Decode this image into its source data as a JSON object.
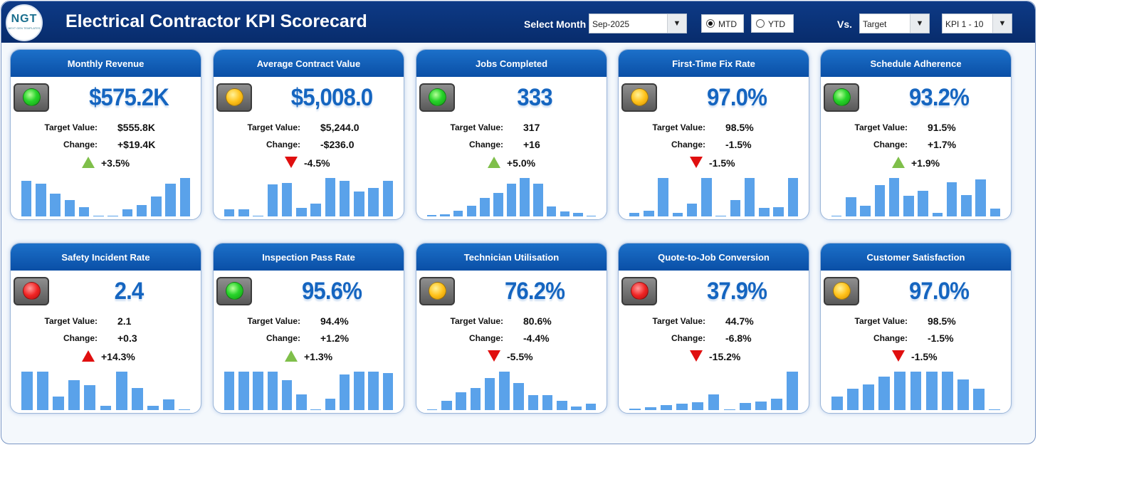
{
  "header": {
    "logo_text": "NGT",
    "logo_subtext": "NEXT GEN TEMPLATES",
    "title": "Electrical Contractor KPI Scorecard",
    "select_month_label": "Select Month",
    "month_value": "Sep-2025",
    "radio_mtd": "MTD",
    "radio_ytd": "YTD",
    "selected_mode": "MTD",
    "vs_label": "Vs.",
    "compare_value": "Target",
    "kpi_range_value": "KPI 1 - 10"
  },
  "labels": {
    "target": "Target Value:",
    "change": "Change:"
  },
  "colors": {
    "header_bg": "#0b357c",
    "card_head": "#0d5cb6",
    "value_blue": "#1565c0",
    "bar": "#5aa2ea",
    "up": "#7fbf4a",
    "down": "#e00f0f"
  },
  "kpis": [
    {
      "title": "Monthly Revenue",
      "status": "green",
      "value": "$575.2K",
      "target": "$555.8K",
      "change": "+$19.4K",
      "direction": "up",
      "pct": "+3.5%",
      "trend": [
        0.93,
        0.85,
        0.6,
        0.43,
        0.25,
        0.02,
        0.02,
        0.19,
        0.3,
        0.52,
        0.85,
        1.0
      ]
    },
    {
      "title": "Average Contract Value",
      "status": "amber",
      "value": "$5,008.0",
      "target": "$5,244.0",
      "change": "-$236.0",
      "direction": "down",
      "pct": "-4.5%",
      "trend": [
        0.19,
        0.19,
        0.02,
        0.83,
        0.87,
        0.22,
        0.33,
        1.0,
        0.93,
        0.65,
        0.74,
        0.93
      ]
    },
    {
      "title": "Jobs Completed",
      "status": "green",
      "value": "333",
      "target": "317",
      "change": "+16",
      "direction": "up",
      "pct": "+5.0%",
      "trend": [
        0.04,
        0.06,
        0.15,
        0.28,
        0.48,
        0.61,
        0.85,
        1.0,
        0.85,
        0.26,
        0.13,
        0.09,
        0.02
      ]
    },
    {
      "title": "First-Time Fix Rate",
      "status": "amber",
      "value": "97.0%",
      "target": "98.5%",
      "change": "-1.5%",
      "direction": "down",
      "pct": "-1.5%",
      "trend": [
        0.1,
        0.15,
        1.0,
        0.1,
        0.33,
        1.0,
        0.02,
        0.42,
        1.0,
        0.22,
        0.24,
        1.0
      ]
    },
    {
      "title": "Schedule Adherence",
      "status": "green",
      "value": "93.2%",
      "target": "91.5%",
      "change": "+1.7%",
      "direction": "up",
      "pct": "+1.9%",
      "trend": [
        0.02,
        0.5,
        0.28,
        0.81,
        1.0,
        0.54,
        0.67,
        0.09,
        0.89,
        0.56,
        0.96,
        0.2
      ]
    },
    {
      "title": "Safety Incident Rate",
      "status": "red",
      "value": "2.4",
      "target": "2.1",
      "change": "+0.3",
      "direction": "up_bad",
      "pct": "+14.3%",
      "trend": [
        1.0,
        1.0,
        0.36,
        0.78,
        0.64,
        0.12,
        1.0,
        0.58,
        0.12,
        0.27,
        0.02
      ]
    },
    {
      "title": "Inspection Pass Rate",
      "status": "green",
      "value": "95.6%",
      "target": "94.4%",
      "change": "+1.2%",
      "direction": "up",
      "pct": "+1.3%",
      "trend": [
        1.0,
        1.0,
        1.0,
        1.0,
        0.78,
        0.4,
        0.02,
        0.3,
        0.93,
        1.0,
        1.0,
        0.96
      ]
    },
    {
      "title": "Technician Utilisation",
      "status": "amber",
      "value": "76.2%",
      "target": "80.6%",
      "change": "-4.4%",
      "direction": "down",
      "pct": "-5.5%",
      "trend": [
        0.02,
        0.25,
        0.47,
        0.57,
        0.83,
        1.0,
        0.7,
        0.38,
        0.38,
        0.25,
        0.1,
        0.17
      ]
    },
    {
      "title": "Quote-to-Job Conversion",
      "status": "red",
      "value": "37.9%",
      "target": "44.7%",
      "change": "-6.8%",
      "direction": "down",
      "pct": "-15.2%",
      "trend": [
        0.04,
        0.08,
        0.13,
        0.17,
        0.21,
        0.4,
        0.02,
        0.19,
        0.23,
        0.3,
        1.0
      ]
    },
    {
      "title": "Customer Satisfaction",
      "status": "amber",
      "value": "97.0%",
      "target": "98.5%",
      "change": "-1.5%",
      "direction": "down",
      "pct": "-1.5%",
      "trend": [
        0.35,
        0.55,
        0.67,
        0.87,
        1.0,
        1.0,
        1.0,
        1.0,
        0.8,
        0.55,
        0.02
      ]
    }
  ]
}
